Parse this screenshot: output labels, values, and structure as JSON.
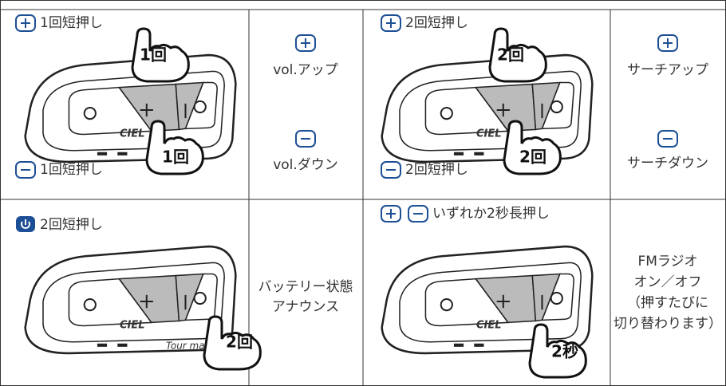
{
  "cells": [
    {
      "top": "1回短押し",
      "bottom": "1回短押し",
      "badges": [
        "1回",
        "1回"
      ]
    },
    {
      "lines": [
        "vol.アップ",
        "vol.ダウン"
      ]
    },
    {
      "top": "2回短押し",
      "bottom": "2回短押し",
      "badges": [
        "2回",
        "2回"
      ]
    },
    {
      "lines": [
        "サーチアップ",
        "サーチダウン"
      ]
    },
    {
      "top": "2回短押し",
      "badges": [
        "2回"
      ]
    },
    {
      "lines": [
        "バッテリー状態",
        "アナウンス"
      ]
    },
    {
      "top": "いずれか2秒長押し",
      "badges": [
        "2秒"
      ]
    },
    {
      "lines": [
        "FMラジオ",
        "オン／オフ",
        "（押すたびに",
        "切り替わります）"
      ]
    }
  ],
  "device": {
    "brand": "CIEL",
    "model": "Tour mate"
  }
}
